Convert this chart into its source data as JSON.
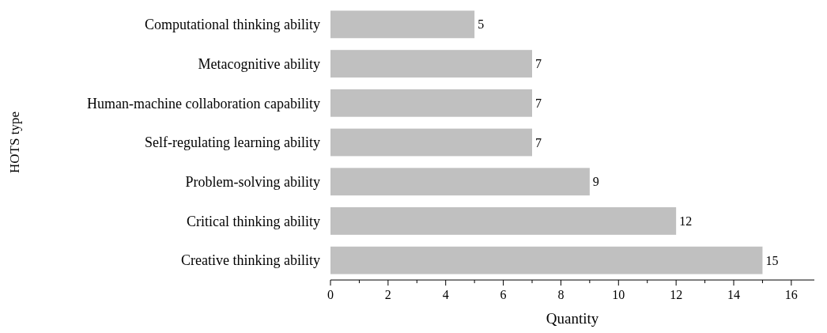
{
  "chart_data": {
    "type": "bar",
    "orientation": "horizontal",
    "xlabel": "Quantity",
    "ylabel": "HOTS type",
    "categories": [
      "Computational thinking ability",
      "Metacognitive ability",
      "Human-machine collaboration capability",
      "Self-regulating learning ability",
      "Problem-solving ability",
      "Critical thinking ability",
      "Creative thinking ability"
    ],
    "values": [
      5,
      7,
      7,
      7,
      9,
      12,
      15
    ],
    "color": "#c0c0c0",
    "data_labels": true,
    "xlim": [
      0,
      16.8
    ],
    "xticks": [
      0,
      {
        "value": 1,
        "label": null
      },
      2,
      {
        "value": 3,
        "label": null
      },
      4,
      {
        "value": 5,
        "label": null
      },
      6,
      {
        "value": 7,
        "label": null
      },
      8,
      {
        "value": 9,
        "label": null
      },
      10,
      {
        "value": 11,
        "label": null
      },
      12,
      {
        "value": 13,
        "label": null
      },
      14,
      {
        "value": 15,
        "label": null
      },
      16
    ]
  }
}
